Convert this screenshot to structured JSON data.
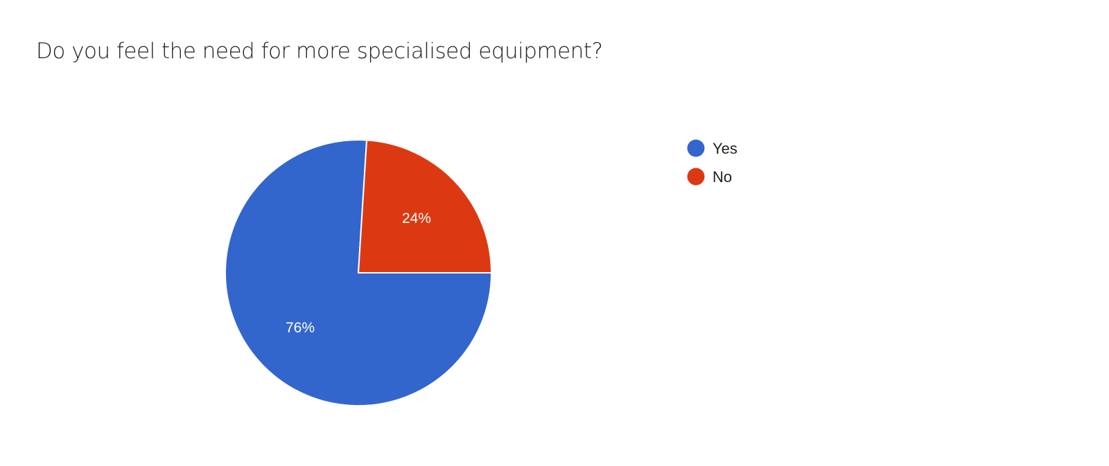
{
  "chart_data": {
    "type": "pie",
    "title": "Do you feel the need for more specialised equipment?",
    "categories": [
      "Yes",
      "No"
    ],
    "values": [
      76,
      24
    ],
    "data_labels": [
      "76%",
      "24%"
    ],
    "colors": [
      "#3366cc",
      "#dc3912"
    ],
    "legend": {
      "position": "right",
      "entries": [
        "Yes",
        "No"
      ]
    }
  }
}
